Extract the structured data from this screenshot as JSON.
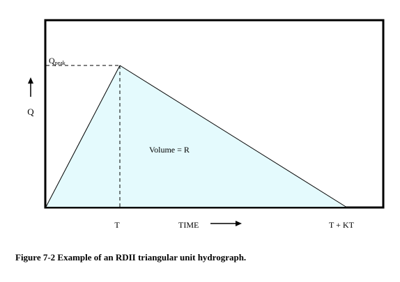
{
  "diagram": {
    "y_axis_label": "Q",
    "peak_label_main": "Q",
    "peak_label_sub": "peak",
    "area_label": "Volume = R",
    "time_label": "TIME",
    "peak_time_label": "T",
    "end_time_label": "T + KT",
    "fill_color": "#e4fafd",
    "line_color": "#000000",
    "k": 3
  },
  "caption": "Figure 7-2 Example of an RDII triangular unit hydrograph."
}
